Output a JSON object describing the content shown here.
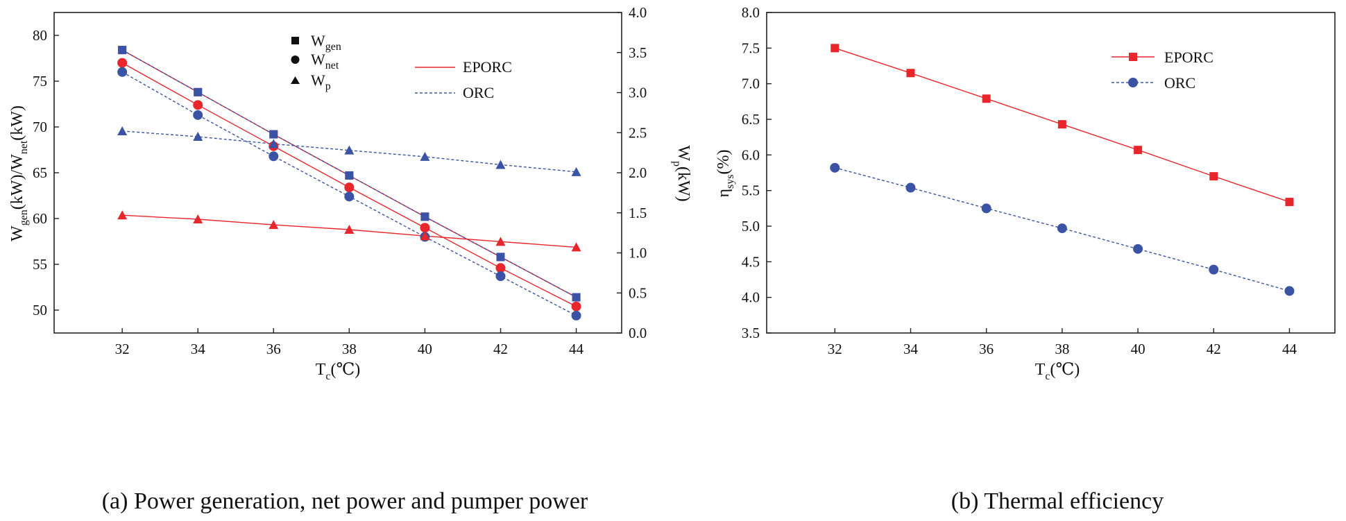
{
  "chart_data": [
    {
      "type": "line",
      "caption": "(a) Power generation, net power and pumper power",
      "xlabel": {
        "main": "T",
        "sub": "c",
        "rest": "(℃)"
      },
      "ylabel_left": {
        "p1": "W",
        "s1": "gen",
        "p2": "(kW)/W",
        "s2": "net",
        "p3": "(kW)"
      },
      "ylabel_right": {
        "p1": "W",
        "s1": "p",
        "p2": "(kW)"
      },
      "x": [
        32,
        34,
        36,
        38,
        40,
        42,
        44
      ],
      "xticks": [
        "32",
        "34",
        "36",
        "38",
        "40",
        "42",
        "44"
      ],
      "xlim": [
        30.2,
        45.2
      ],
      "ylim_left": [
        47.5,
        82.5
      ],
      "ylim_right": [
        0.0,
        4.0
      ],
      "yticks_left": [
        "50",
        "55",
        "60",
        "65",
        "70",
        "75",
        "80"
      ],
      "yticks_right": [
        "0.0",
        "0.5",
        "1.0",
        "1.5",
        "2.0",
        "2.5",
        "3.0",
        "3.5",
        "4.0"
      ],
      "colors": {
        "EPORC": "#e8262c",
        "ORC": "#3a53a4"
      },
      "series": [
        {
          "name": "W_gen EPORC",
          "cycle": "EPORC",
          "marker": "square",
          "axis": "left",
          "values": [
            78.4,
            73.8,
            69.2,
            64.7,
            60.2,
            55.8,
            51.4
          ]
        },
        {
          "name": "W_gen ORC",
          "cycle": "ORC",
          "marker": "square",
          "axis": "left",
          "values": [
            78.4,
            73.8,
            69.2,
            64.7,
            60.2,
            55.8,
            51.4
          ]
        },
        {
          "name": "W_net EPORC",
          "cycle": "EPORC",
          "marker": "circle",
          "axis": "left",
          "values": [
            77.0,
            72.4,
            67.9,
            63.4,
            59.0,
            54.6,
            50.4
          ]
        },
        {
          "name": "W_net ORC",
          "cycle": "ORC",
          "marker": "circle",
          "axis": "left",
          "values": [
            76.0,
            71.3,
            66.8,
            62.4,
            58.0,
            53.7,
            49.4
          ]
        },
        {
          "name": "W_p EPORC",
          "cycle": "EPORC",
          "marker": "triangle",
          "axis": "right",
          "values": [
            1.47,
            1.42,
            1.35,
            1.29,
            1.21,
            1.14,
            1.07
          ]
        },
        {
          "name": "W_p ORC",
          "cycle": "ORC",
          "marker": "triangle",
          "axis": "right",
          "values": [
            2.52,
            2.45,
            2.36,
            2.28,
            2.2,
            2.1,
            2.01
          ]
        }
      ],
      "legend_markers": [
        {
          "marker": "square",
          "text": "W",
          "sub": "gen"
        },
        {
          "marker": "circle",
          "text": "W",
          "sub": "net"
        },
        {
          "marker": "triangle",
          "text": "W",
          "sub": "p"
        }
      ],
      "legend_lines": [
        {
          "cycle": "EPORC",
          "label": "EPORC"
        },
        {
          "cycle": "ORC",
          "label": "ORC"
        }
      ]
    },
    {
      "type": "line",
      "caption": "(b) Thermal efficiency",
      "xlabel": {
        "main": "T",
        "sub": "c",
        "rest": "(℃)"
      },
      "ylabel": {
        "p1": "η",
        "s1": "sys",
        "p2": "(%)"
      },
      "x": [
        32,
        34,
        36,
        38,
        40,
        42,
        44
      ],
      "xticks": [
        "32",
        "34",
        "36",
        "38",
        "40",
        "42",
        "44"
      ],
      "xlim": [
        30.2,
        45.2
      ],
      "ylim": [
        3.5,
        8.0
      ],
      "yticks": [
        "3.5",
        "4.0",
        "4.5",
        "5.0",
        "5.5",
        "6.0",
        "6.5",
        "7.0",
        "7.5",
        "8.0"
      ],
      "colors": {
        "EPORC": "#e8262c",
        "ORC": "#3a53a4"
      },
      "series": [
        {
          "name": "EPORC",
          "cycle": "EPORC",
          "marker": "square",
          "values": [
            7.5,
            7.15,
            6.79,
            6.43,
            6.07,
            5.7,
            5.34
          ]
        },
        {
          "name": "ORC",
          "cycle": "ORC",
          "marker": "circle",
          "values": [
            5.82,
            5.54,
            5.25,
            4.97,
            4.68,
            4.39,
            4.09
          ]
        }
      ]
    }
  ]
}
